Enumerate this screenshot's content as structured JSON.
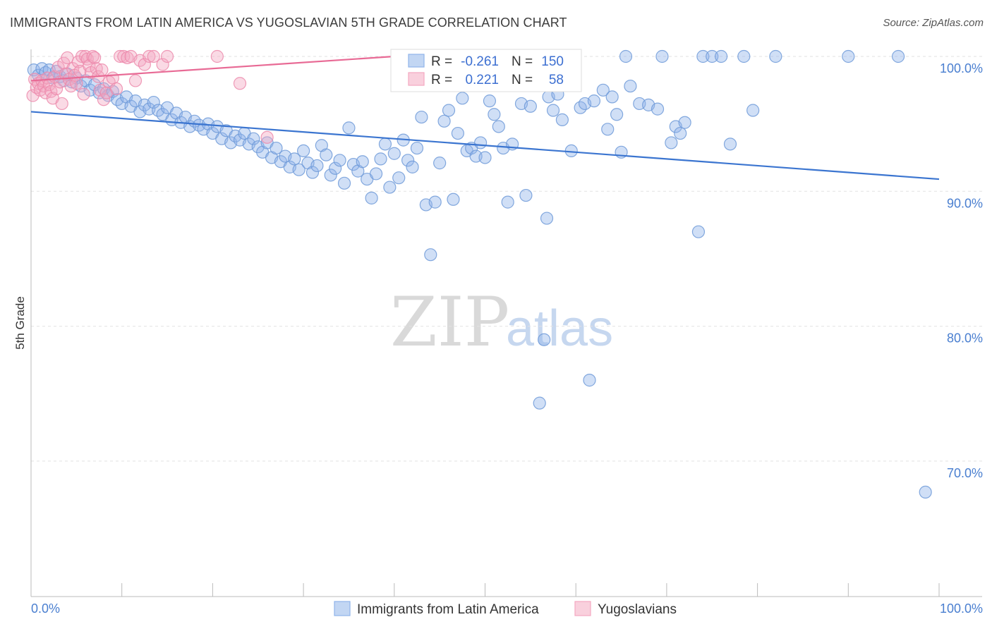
{
  "header": {
    "title": "IMMIGRANTS FROM LATIN AMERICA VS YUGOSLAVIAN 5TH GRADE CORRELATION CHART",
    "source": "Source: ZipAtlas.com"
  },
  "watermark": {
    "part1": "ZIP",
    "part2": "atlas"
  },
  "stats_legend": {
    "r_label": "R =",
    "n_label": "N =",
    "rows": [
      {
        "r": "-0.261",
        "n": "150",
        "color": "#8fb3ea"
      },
      {
        "r": "0.221",
        "n": "58",
        "color": "#f4a8c0"
      }
    ]
  },
  "chart_data": {
    "type": "scatter",
    "title": "IMMIGRANTS FROM LATIN AMERICA VS YUGOSLAVIAN 5TH GRADE CORRELATION CHART",
    "xlabel": "",
    "ylabel": "5th Grade",
    "xlim": [
      0,
      100
    ],
    "ylim": [
      60.5,
      101
    ],
    "x_tick_labels": [
      "0.0%",
      "100.0%"
    ],
    "y_ticks": [
      100,
      90,
      80,
      70
    ],
    "y_tick_labels": [
      "100.0%",
      "90.0%",
      "80.0%",
      "70.0%"
    ],
    "grid": true,
    "legend_position": "bottom",
    "series": [
      {
        "name": "Immigrants from Latin America",
        "color": "#8fb3ea",
        "stroke": "#6f9ad8",
        "r": -0.261,
        "n": 150,
        "trend": {
          "x": [
            0,
            100
          ],
          "y": [
            95.9,
            90.9
          ],
          "color": "#3b75d0"
        },
        "points": [
          [
            0.3,
            99
          ],
          [
            0.8,
            98.6
          ],
          [
            1.2,
            99.1
          ],
          [
            1.6,
            98.8
          ],
          [
            2.0,
            99
          ],
          [
            2.4,
            98.4
          ],
          [
            2.8,
            98.9
          ],
          [
            3.2,
            98.5
          ],
          [
            3.6,
            98.2
          ],
          [
            4.0,
            98.7
          ],
          [
            4.5,
            98.1
          ],
          [
            5.0,
            98.4
          ],
          [
            5.5,
            97.8
          ],
          [
            6.0,
            98.2
          ],
          [
            6.5,
            97.5
          ],
          [
            7.0,
            97.9
          ],
          [
            7.5,
            97.3
          ],
          [
            8.0,
            97.6
          ],
          [
            8.5,
            97.1
          ],
          [
            9.0,
            97.4
          ],
          [
            9.5,
            96.8
          ],
          [
            10.0,
            96.5
          ],
          [
            10.5,
            97.0
          ],
          [
            11.0,
            96.3
          ],
          [
            11.5,
            96.7
          ],
          [
            12.0,
            95.9
          ],
          [
            12.5,
            96.4
          ],
          [
            13.0,
            96.1
          ],
          [
            13.5,
            96.6
          ],
          [
            14.0,
            96.0
          ],
          [
            14.5,
            95.7
          ],
          [
            15.0,
            96.2
          ],
          [
            15.5,
            95.3
          ],
          [
            16.0,
            95.8
          ],
          [
            16.5,
            95.1
          ],
          [
            17.0,
            95.5
          ],
          [
            17.5,
            94.8
          ],
          [
            18.0,
            95.2
          ],
          [
            18.5,
            94.9
          ],
          [
            19.0,
            94.6
          ],
          [
            19.5,
            95.0
          ],
          [
            20.0,
            94.3
          ],
          [
            20.5,
            94.8
          ],
          [
            21.0,
            93.9
          ],
          [
            21.5,
            94.5
          ],
          [
            22.0,
            93.6
          ],
          [
            22.5,
            94.1
          ],
          [
            23.0,
            93.8
          ],
          [
            23.5,
            94.3
          ],
          [
            24.0,
            93.5
          ],
          [
            24.5,
            93.9
          ],
          [
            25.0,
            93.3
          ],
          [
            25.5,
            92.9
          ],
          [
            26.0,
            93.6
          ],
          [
            26.5,
            92.5
          ],
          [
            27.0,
            93.2
          ],
          [
            27.5,
            92.2
          ],
          [
            28.0,
            92.6
          ],
          [
            28.5,
            91.8
          ],
          [
            29.0,
            92.4
          ],
          [
            29.5,
            91.6
          ],
          [
            30.0,
            93.0
          ],
          [
            30.5,
            92.1
          ],
          [
            31.0,
            91.4
          ],
          [
            31.5,
            91.9
          ],
          [
            32.0,
            93.4
          ],
          [
            32.5,
            92.7
          ],
          [
            33.0,
            91.2
          ],
          [
            33.5,
            91.7
          ],
          [
            34.0,
            92.3
          ],
          [
            34.5,
            90.6
          ],
          [
            35.0,
            94.7
          ],
          [
            35.5,
            92.0
          ],
          [
            36.0,
            91.5
          ],
          [
            36.5,
            92.2
          ],
          [
            37.0,
            90.9
          ],
          [
            37.5,
            89.5
          ],
          [
            38.0,
            91.3
          ],
          [
            38.5,
            92.4
          ],
          [
            39.0,
            93.5
          ],
          [
            39.5,
            90.3
          ],
          [
            40.0,
            92.8
          ],
          [
            40.5,
            91.0
          ],
          [
            41.0,
            93.8
          ],
          [
            41.5,
            92.3
          ],
          [
            42.0,
            91.8
          ],
          [
            42.5,
            93.2
          ],
          [
            43.0,
            95.5
          ],
          [
            43.5,
            89.0
          ],
          [
            44.0,
            85.3
          ],
          [
            44.5,
            89.2
          ],
          [
            45.0,
            92.1
          ],
          [
            45.5,
            95.2
          ],
          [
            46.0,
            96.0
          ],
          [
            46.5,
            89.4
          ],
          [
            47.0,
            94.3
          ],
          [
            47.5,
            96.9
          ],
          [
            48.0,
            93.0
          ],
          [
            48.5,
            93.2
          ],
          [
            49.0,
            92.6
          ],
          [
            49.5,
            93.6
          ],
          [
            50.0,
            92.5
          ],
          [
            50.5,
            96.7
          ],
          [
            51.0,
            95.7
          ],
          [
            51.5,
            94.8
          ],
          [
            52.0,
            93.2
          ],
          [
            52.5,
            89.2
          ],
          [
            53.0,
            93.5
          ],
          [
            53.5,
            98.2
          ],
          [
            54.0,
            96.5
          ],
          [
            54.5,
            89.7
          ],
          [
            55.0,
            96.3
          ],
          [
            56.0,
            74.3
          ],
          [
            56.5,
            79.0
          ],
          [
            56.8,
            88.0
          ],
          [
            57.0,
            97.0
          ],
          [
            57.5,
            96.0
          ],
          [
            58.0,
            97.2
          ],
          [
            58.5,
            95.3
          ],
          [
            59.5,
            93.0
          ],
          [
            60.5,
            96.2
          ],
          [
            61.0,
            96.5
          ],
          [
            61.5,
            76.0
          ],
          [
            62.0,
            96.7
          ],
          [
            63.0,
            97.5
          ],
          [
            63.5,
            94.6
          ],
          [
            64.0,
            97.0
          ],
          [
            64.5,
            95.7
          ],
          [
            65.0,
            92.9
          ],
          [
            65.5,
            100
          ],
          [
            66.0,
            97.8
          ],
          [
            67.0,
            96.5
          ],
          [
            68.0,
            96.4
          ],
          [
            69.0,
            96.1
          ],
          [
            69.5,
            100
          ],
          [
            70.5,
            93.6
          ],
          [
            71.0,
            94.8
          ],
          [
            71.5,
            94.3
          ],
          [
            72.0,
            95.1
          ],
          [
            73.5,
            87.0
          ],
          [
            74.0,
            100
          ],
          [
            75.0,
            100
          ],
          [
            76.0,
            100
          ],
          [
            77.0,
            93.5
          ],
          [
            78.5,
            100
          ],
          [
            79.5,
            96.0
          ],
          [
            82.0,
            100
          ],
          [
            90.0,
            100
          ],
          [
            95.5,
            100
          ],
          [
            98.5,
            67.7
          ]
        ]
      },
      {
        "name": "Yugoslavians",
        "color": "#f4a8c0",
        "stroke": "#ec8aab",
        "r": 0.221,
        "n": 58,
        "trend": {
          "x": [
            0,
            40
          ],
          "y": [
            98.2,
            100
          ],
          "color": "#e86a95"
        },
        "points": [
          [
            0.2,
            97.1
          ],
          [
            0.4,
            98.3
          ],
          [
            0.6,
            97.7
          ],
          [
            0.8,
            98.0
          ],
          [
            1.0,
            97.5
          ],
          [
            1.2,
            98.2
          ],
          [
            1.4,
            97.8
          ],
          [
            1.6,
            97.3
          ],
          [
            1.8,
            98.4
          ],
          [
            2.0,
            97.9
          ],
          [
            2.2,
            97.4
          ],
          [
            2.4,
            96.9
          ],
          [
            2.6,
            98.5
          ],
          [
            2.8,
            97.6
          ],
          [
            3.0,
            99.2
          ],
          [
            3.2,
            98.1
          ],
          [
            3.4,
            96.5
          ],
          [
            3.6,
            99.5
          ],
          [
            3.8,
            98.7
          ],
          [
            4.0,
            99.9
          ],
          [
            4.2,
            98.3
          ],
          [
            4.4,
            97.8
          ],
          [
            4.6,
            99.1
          ],
          [
            4.8,
            98.6
          ],
          [
            5.0,
            98.0
          ],
          [
            5.2,
            99.6
          ],
          [
            5.4,
            98.9
          ],
          [
            5.6,
            100
          ],
          [
            5.8,
            97.2
          ],
          [
            6.0,
            100
          ],
          [
            6.2,
            99.8
          ],
          [
            6.4,
            99.3
          ],
          [
            6.6,
            98.8
          ],
          [
            6.8,
            100
          ],
          [
            7.0,
            99.9
          ],
          [
            7.2,
            99.1
          ],
          [
            7.4,
            98.5
          ],
          [
            7.6,
            97.5
          ],
          [
            7.8,
            99.0
          ],
          [
            8.0,
            96.8
          ],
          [
            8.3,
            97.3
          ],
          [
            8.6,
            98.1
          ],
          [
            9.0,
            98.4
          ],
          [
            9.4,
            97.6
          ],
          [
            9.8,
            100
          ],
          [
            10.2,
            100
          ],
          [
            10.6,
            99.9
          ],
          [
            11.0,
            100
          ],
          [
            11.5,
            98.2
          ],
          [
            12.0,
            99.7
          ],
          [
            12.5,
            99.4
          ],
          [
            13.0,
            100
          ],
          [
            13.5,
            100
          ],
          [
            14.5,
            99.4
          ],
          [
            15.0,
            100
          ],
          [
            20.5,
            100
          ],
          [
            23.0,
            98.0
          ],
          [
            26.0,
            94.0
          ]
        ]
      }
    ]
  }
}
